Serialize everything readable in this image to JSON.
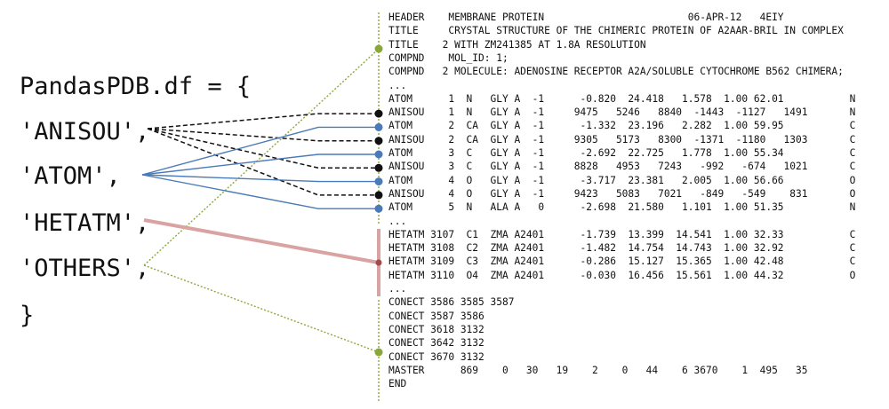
{
  "dict": {
    "opening": "PandasPDB.df = {",
    "keys": [
      "'ANISOU',",
      "'ATOM',",
      "'HETATM',",
      "'OTHERS',"
    ],
    "closing": "}"
  },
  "pdb_lines": [
    "HEADER    MEMBRANE PROTEIN                        06-APR-12   4EIY",
    "TITLE     CRYSTAL STRUCTURE OF THE CHIMERIC PROTEIN OF A2AAR-BRIL IN COMPLEX",
    "TITLE    2 WITH ZM241385 AT 1.8A RESOLUTION",
    "COMPND    MOL_ID: 1;",
    "COMPND   2 MOLECULE: ADENOSINE RECEPTOR A2A/SOLUBLE CYTOCHROME B562 CHIMERA;",
    "...",
    "ATOM      1  N   GLY A  -1      -0.820  24.418   1.578  1.00 62.01           N",
    "ANISOU    1  N   GLY A  -1     9475   5246   8840  -1443  -1127   1491       N",
    "ATOM      2  CA  GLY A  -1      -1.332  23.196   2.282  1.00 59.95           C",
    "ANISOU    2  CA  GLY A  -1     9305   5173   8300  -1371  -1180   1303       C",
    "ATOM      3  C   GLY A  -1      -2.692  22.725   1.778  1.00 55.34           C",
    "ANISOU    3  C   GLY A  -1     8828   4953   7243   -992   -674   1021       C",
    "ATOM      4  O   GLY A  -1      -3.717  23.381   2.005  1.00 56.66           O",
    "ANISOU    4  O   GLY A  -1     9423   5083   7021   -849   -549    831       O",
    "ATOM      5  N   ALA A   0      -2.698  21.580   1.101  1.00 51.35           N",
    "...",
    "HETATM 3107  C1  ZMA A2401      -1.739  13.399  14.541  1.00 32.33           C",
    "HETATM 3108  C2  ZMA A2401      -1.482  14.754  14.743  1.00 32.92           C",
    "HETATM 3109  C3  ZMA A2401      -0.286  15.127  15.365  1.00 42.48           C",
    "HETATM 3110  O4  ZMA A2401      -0.030  16.456  15.561  1.00 44.32           O",
    "...",
    "CONECT 3586 3585 3587",
    "CONECT 3587 3586",
    "CONECT 3618 3132",
    "CONECT 3642 3132",
    "CONECT 3670 3132",
    "MASTER      869    0   30   19    2    0   44    6 3670    1  495   35",
    "END"
  ],
  "colors": {
    "anisou": "#111111",
    "atom": "#4a7ab8",
    "hetatm": "#a34a4a",
    "hetatm_bar": "#d9a3a3",
    "others": "#8aa83a",
    "text": "#111111"
  }
}
